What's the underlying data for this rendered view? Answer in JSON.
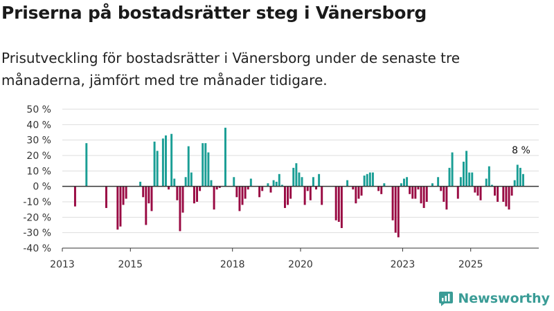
{
  "header": {
    "title": "Priserna på bostadsrätter steg i Vänersborg",
    "subtitle": "Prisutveckling för bostadsrätter i Vänersborg under de senaste tre månaderna, jämfört med tre månader tidigare."
  },
  "brand": {
    "name": "Newsworthy",
    "icon": "newsworthy-logo-icon"
  },
  "colors": {
    "positive": "#1a9e95",
    "negative": "#990a43",
    "grid": "#dddddd",
    "axis": "#333333",
    "text": "#333333"
  },
  "chart_data": {
    "type": "bar",
    "title": "Priserna på bostadsrätter steg i Vänersborg",
    "xlabel": "",
    "ylabel": "",
    "unit": " %",
    "ylim": [
      -40,
      50
    ],
    "yticks": [
      -40,
      -30,
      -20,
      -10,
      0,
      10,
      20,
      30,
      40,
      50
    ],
    "ytick_labels": [
      "-40 %",
      "-30 %",
      "-20 %",
      "-10 %",
      "0 %",
      "10 %",
      "20 %",
      "30 %",
      "40 %",
      "50 %"
    ],
    "x_start": 2013.0,
    "x_end": 2027.0,
    "xticks": [
      2013,
      2015,
      2018,
      2020,
      2023,
      2025
    ],
    "xtick_labels": [
      "2013",
      "2015",
      "2018",
      "2020",
      "2023",
      "2025"
    ],
    "grid": true,
    "data_label": {
      "text": "8 %",
      "index": 0
    },
    "x_start_month": "2013-01",
    "values": [
      0,
      0,
      0,
      0,
      -13,
      0,
      0,
      0,
      28,
      0,
      0,
      0,
      0,
      0,
      0,
      -14,
      0,
      0,
      0,
      -28,
      -26,
      -12,
      -8,
      0,
      0,
      0,
      0,
      3,
      -7,
      -25,
      -11,
      -16,
      29,
      23,
      0,
      31,
      33,
      -2,
      34,
      5,
      -9,
      -29,
      -17,
      6,
      26,
      9,
      -11,
      -10,
      -3,
      28,
      28,
      22,
      4,
      -15,
      -2,
      -1,
      0,
      38,
      0,
      0,
      6,
      -7,
      -16,
      -12,
      -8,
      -2,
      5,
      0,
      0,
      -7,
      -3,
      0,
      2,
      -4,
      4,
      3,
      8,
      1,
      -14,
      -12,
      -8,
      12,
      15,
      9,
      6,
      -12,
      -3,
      -9,
      6,
      -2,
      8,
      -12,
      0,
      0,
      0,
      0,
      -22,
      -23,
      -27,
      0,
      4,
      0,
      -2,
      -11,
      -8,
      -6,
      7,
      8,
      9,
      9,
      0,
      -3,
      -5,
      2,
      0,
      0,
      -22,
      -30,
      -33,
      2,
      5,
      6,
      -5,
      -8,
      -8,
      -2,
      -11,
      -14,
      -10,
      0,
      2,
      0,
      6,
      -3,
      -10,
      -15,
      12,
      22,
      0,
      -8,
      6,
      16,
      23,
      9,
      9,
      -4,
      -6,
      -9,
      0,
      5,
      13,
      1,
      -6,
      -10,
      0,
      -10,
      -13,
      -15,
      -6,
      4,
      14,
      12,
      8
    ]
  }
}
